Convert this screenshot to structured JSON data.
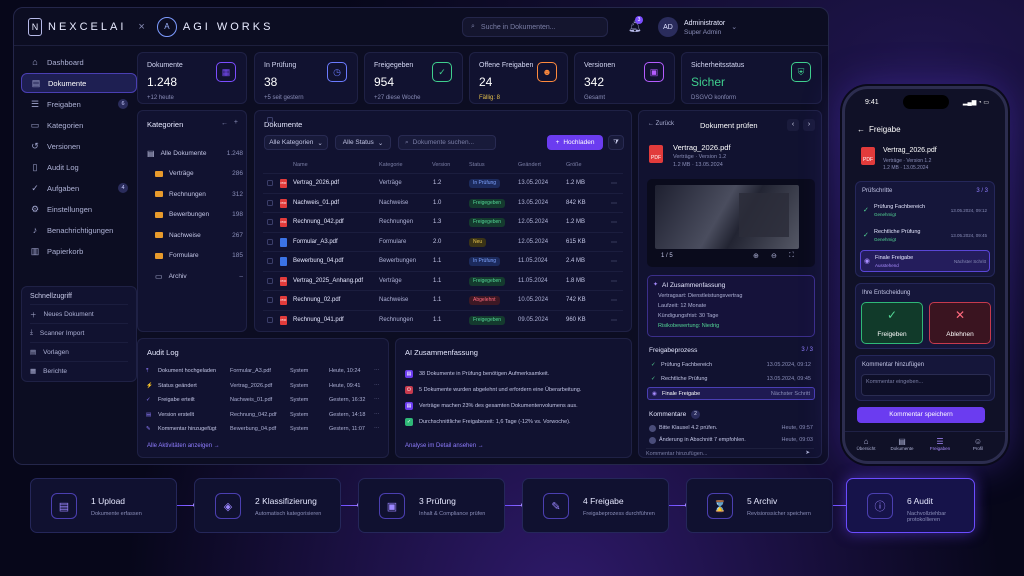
{
  "brand": {
    "name1": "NEXCELAI",
    "sep": "×",
    "name2": "AGI WORKS"
  },
  "search": {
    "placeholder": "Suche in Dokumenten..."
  },
  "notifications": {
    "count": "3"
  },
  "user": {
    "initials": "AD",
    "name": "Administrator",
    "role": "Super Admin"
  },
  "nav": [
    {
      "label": "Dashboard"
    },
    {
      "label": "Dokumente"
    },
    {
      "label": "Freigaben",
      "count": "6"
    },
    {
      "label": "Kategorien"
    },
    {
      "label": "Versionen"
    },
    {
      "label": "Audit Log"
    },
    {
      "label": "Aufgaben",
      "count": "4"
    },
    {
      "label": "Einstellungen"
    },
    {
      "label": "Benachrichtigungen"
    },
    {
      "label": "Papierkorb"
    }
  ],
  "quick": {
    "title": "Schnellzugriff",
    "items": [
      "Neues Dokument",
      "Scanner Import",
      "Vorlagen",
      "Berichte"
    ]
  },
  "stats": [
    {
      "label": "Dokumente",
      "value": "1.248",
      "sub": "+12 heute",
      "color": "#7b4dff"
    },
    {
      "label": "In Prüfung",
      "value": "38",
      "sub": "+5 seit gestern",
      "color": "#6b7bff"
    },
    {
      "label": "Freigegeben",
      "value": "954",
      "sub": "+27 diese Woche",
      "color": "#3fcf8e"
    },
    {
      "label": "Offene Freigaben",
      "value": "24",
      "sub": "Fällig: 8",
      "color": "#ff8a3d"
    },
    {
      "label": "Versionen",
      "value": "342",
      "sub": "Gesamt",
      "color": "#b45cff"
    },
    {
      "label": "Sicherheitsstatus",
      "value": "Sicher",
      "sub": "DSGVO konform",
      "color": "#3fcf8e"
    }
  ],
  "categories": {
    "title": "Kategorien",
    "items": [
      {
        "label": "Alle Dokumente",
        "count": "1.248"
      },
      {
        "label": "Verträge",
        "count": "286"
      },
      {
        "label": "Rechnungen",
        "count": "312"
      },
      {
        "label": "Bewerbungen",
        "count": "198"
      },
      {
        "label": "Nachweise",
        "count": "267"
      },
      {
        "label": "Formulare",
        "count": "185"
      },
      {
        "label": "Archiv",
        "count": "–"
      }
    ]
  },
  "documents": {
    "title": "Dokumente",
    "filter1": "Alle Kategorien",
    "filter2": "Alle Status",
    "search": "Dokumente suchen...",
    "upload": "Hochladen",
    "headers": [
      "Name",
      "Kategorie",
      "Version",
      "Status",
      "Geändert",
      "Größe"
    ],
    "rows": [
      [
        "Vertrag_2026.pdf",
        "Verträge",
        "1.2",
        "In Prüfung",
        "13.05.2024",
        "1.2 MB",
        "blue"
      ],
      [
        "Nachweis_01.pdf",
        "Nachweise",
        "1.0",
        "Freigegeben",
        "13.05.2024",
        "842 KB",
        "green"
      ],
      [
        "Rechnung_042.pdf",
        "Rechnungen",
        "1.3",
        "Freigegeben",
        "12.05.2024",
        "1.2 MB",
        "green"
      ],
      [
        "Formular_A3.pdf",
        "Formulare",
        "2.0",
        "Neu",
        "12.05.2024",
        "615 KB",
        "yellow"
      ],
      [
        "Bewerbung_04.pdf",
        "Bewerbungen",
        "1.1",
        "In Prüfung",
        "11.05.2024",
        "2.4 MB",
        "blue"
      ],
      [
        "Vertrag_2025_Anhang.pdf",
        "Verträge",
        "1.1",
        "Freigegeben",
        "11.05.2024",
        "1.8 MB",
        "green"
      ],
      [
        "Rechnung_02.pdf",
        "Nachweise",
        "1.1",
        "Abgelehnt",
        "10.05.2024",
        "742 KB",
        "red"
      ],
      [
        "Rechnung_041.pdf",
        "Rechnungen",
        "1.1",
        "Freigegeben",
        "09.05.2024",
        "960 KB",
        "green"
      ]
    ]
  },
  "audit": {
    "title": "Audit Log",
    "rows": [
      [
        "Dokument hochgeladen",
        "Formular_A3.pdf",
        "System",
        "Heute, 10:24"
      ],
      [
        "Status geändert",
        "Vertrag_2026.pdf",
        "System",
        "Heute, 09:41"
      ],
      [
        "Freigabe erteilt",
        "Nachweis_01.pdf",
        "System",
        "Gestern, 16:32"
      ],
      [
        "Version erstellt",
        "Rechnung_042.pdf",
        "System",
        "Gestern, 14:18"
      ],
      [
        "Kommentar hinzugefügt",
        "Bewerbung_04.pdf",
        "System",
        "Gestern, 11:07"
      ]
    ],
    "link": "Alle Aktivitäten anzeigen →"
  },
  "ai": {
    "title": "AI Zusammenfassung",
    "items": [
      "38 Dokumente in Prüfung benötigen Aufmerksamkeit.",
      "5 Dokumente wurden abgelehnt und erfordern eine Überarbeitung.",
      "Verträge machen 23% des gesamten Dokumentenvolumens aus.",
      "Durchschnittliche Freigabezeit: 1,6 Tage (-12% vs. Vorwoche)."
    ],
    "link": "Analyse im Detail ansehen →"
  },
  "review": {
    "back": "← Zurück",
    "title": "Dokument prüfen",
    "file": "Vertrag_2026.pdf",
    "meta1": "Verträge · Version 1.2",
    "meta2": "1.2 MB · 13.05.2024",
    "page": "1 / 5",
    "ai_title": "AI Zusammenfassung",
    "ai_lines": [
      "Vertragsart: Dienstleistungsvertrag",
      "Laufzeit: 12 Monate",
      "Kündigungsfrist: 30 Tage",
      "Risikobewertung: Niedrig"
    ],
    "proc_title": "Freigabeprozess",
    "proc_count": "3 / 3",
    "proc": [
      [
        "Prüfung Fachbereich",
        "13.05.2024, 09:12"
      ],
      [
        "Rechtliche Prüfung",
        "13.05.2024, 09:45"
      ],
      [
        "Finale Freigabe",
        "Nächster Schritt"
      ]
    ],
    "comments_title": "Kommentare",
    "comments_count": "2",
    "comments": [
      [
        "Bitte Klausel 4.2 prüfen.",
        "Heute, 09:57"
      ],
      [
        "Änderung in Abschnitt 7 empfohlen.",
        "Heute, 09:03"
      ]
    ],
    "comment_ph": "Kommentar hinzufügen..."
  },
  "phone": {
    "time": "9:41",
    "title": "Freigabe",
    "file": "Vertrag_2026.pdf",
    "meta1": "Verträge · Version 1.2",
    "meta2": "1.2 MB · 13.05.2024",
    "steps_title": "Prüfschritte",
    "steps_count": "3 / 3",
    "steps": [
      [
        "Prüfung Fachbereich",
        "Genehmigt",
        "13.05.2024, 09:12"
      ],
      [
        "Rechtliche Prüfung",
        "Genehmigt",
        "13.05.2024, 09:45"
      ],
      [
        "Finale Freigabe",
        "Ausstehend",
        "Nächster Schritt"
      ]
    ],
    "decision": "Ihre Entscheidung",
    "approve": "Freigeben",
    "reject": "Ablehnen",
    "comment_label": "Kommentar hinzufügen",
    "comment_ph": "Kommentar eingeben...",
    "save": "Kommentar speichern",
    "tabs": [
      "Übersicht",
      "Dokumente",
      "Freigaben",
      "Profil"
    ]
  },
  "process": [
    {
      "num": "1 Upload",
      "sub": "Dokumente erfassen"
    },
    {
      "num": "2 Klassifizierung",
      "sub": "Automatisch kategorisieren"
    },
    {
      "num": "3 Prüfung",
      "sub": "Inhalt & Compliance prüfen"
    },
    {
      "num": "4 Freigabe",
      "sub": "Freigabeprozess durchführen"
    },
    {
      "num": "5 Archiv",
      "sub": "Revisionssicher speichern"
    },
    {
      "num": "6 Audit",
      "sub": "Nachvollziehbar protokollieren"
    }
  ]
}
